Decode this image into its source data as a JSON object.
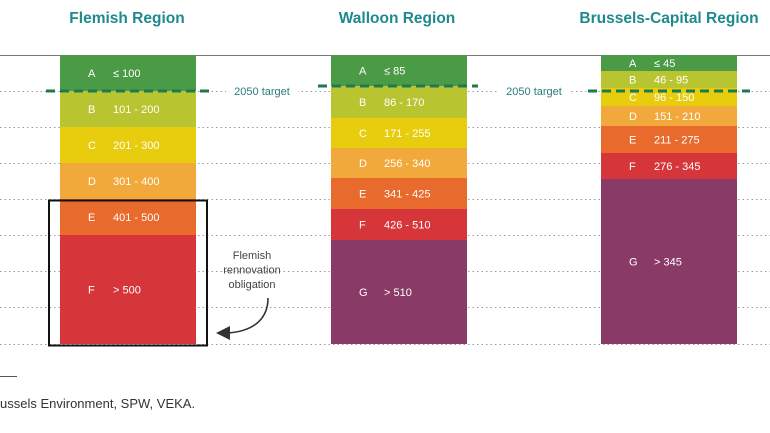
{
  "chart_data": {
    "type": "table",
    "title": "",
    "regions": [
      {
        "name": "Flemish Region",
        "bands": [
          {
            "label": "A",
            "range": "≤ 100",
            "color": "#4a9a46"
          },
          {
            "label": "B",
            "range": "101 - 200",
            "color": "#b9c530"
          },
          {
            "label": "C",
            "range": "201 - 300",
            "color": "#e8cc0e"
          },
          {
            "label": "D",
            "range": "301 - 400",
            "color": "#f2a93b"
          },
          {
            "label": "E",
            "range": "401 - 500",
            "color": "#e86a2c"
          },
          {
            "label": "F",
            "range": "> 500",
            "color": "#d6363a"
          }
        ]
      },
      {
        "name": "Walloon Region",
        "bands": [
          {
            "label": "A",
            "range": "≤ 85",
            "color": "#4a9a46"
          },
          {
            "label": "B",
            "range": "86 - 170",
            "color": "#b9c530"
          },
          {
            "label": "C",
            "range": "171 - 255",
            "color": "#e8cc0e"
          },
          {
            "label": "D",
            "range": "256 - 340",
            "color": "#f2a93b"
          },
          {
            "label": "E",
            "range": "341 - 425",
            "color": "#e86a2c"
          },
          {
            "label": "F",
            "range": "426 - 510",
            "color": "#d6363a"
          },
          {
            "label": "G",
            "range": "> 510",
            "color": "#8a3a66"
          }
        ]
      },
      {
        "name": "Brussels-Capital Region",
        "bands": [
          {
            "label": "A",
            "range": "≤ 45",
            "color": "#4a9a46"
          },
          {
            "label": "B",
            "range": "46 - 95",
            "color": "#b9c530"
          },
          {
            "label": "C",
            "range": "96 - 150",
            "color": "#e8cc0e"
          },
          {
            "label": "D",
            "range": "151 - 210",
            "color": "#f2a93b"
          },
          {
            "label": "E",
            "range": "211 - 275",
            "color": "#e86a2c"
          },
          {
            "label": "F",
            "range": "276 - 345",
            "color": "#d6363a"
          },
          {
            "label": "G",
            "range": "> 345",
            "color": "#8a3a66"
          }
        ]
      }
    ],
    "target_label": "2050 target",
    "annotation": [
      "Flemish",
      "rennovation",
      "obligation"
    ],
    "source": "ussels Environment, SPW, VEKA."
  },
  "colors": {
    "title": "#1e8a8e",
    "target_line": "#1a7a50",
    "grid": "#9a9a9a"
  }
}
